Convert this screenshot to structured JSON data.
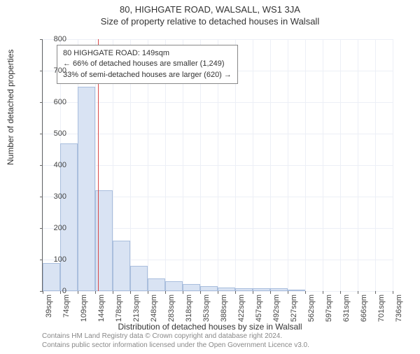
{
  "title_main": "80, HIGHGATE ROAD, WALSALL, WS1 3JA",
  "title_sub": "Size of property relative to detached houses in Walsall",
  "ylabel": "Number of detached properties",
  "xlabel": "Distribution of detached houses by size in Walsall",
  "data_note1": "Contains HM Land Registry data © Crown copyright and database right 2024.",
  "data_note2": "Contains public sector information licensed under the Open Government Licence v3.0.",
  "annotation": {
    "line1": "80 HIGHGATE ROAD: 149sqm",
    "line2": "← 66% of detached houses are smaller (1,249)",
    "line3": "33% of semi-detached houses are larger (620) →"
  },
  "chart": {
    "type": "histogram",
    "background_color": "#ffffff",
    "grid_color": "#eceff6",
    "bar_fill": "#d9e3f3",
    "bar_border": "#a9bedd",
    "marker_color": "#d94a4a",
    "marker_x_value": 149,
    "ylim": [
      0,
      800
    ],
    "ytick_step": 100,
    "yticks": [
      0,
      100,
      200,
      300,
      400,
      500,
      600,
      700,
      800
    ],
    "x_bin_start": 39,
    "x_bin_width": 35,
    "xticks": [
      "39sqm",
      "74sqm",
      "109sqm",
      "144sqm",
      "178sqm",
      "213sqm",
      "248sqm",
      "283sqm",
      "318sqm",
      "353sqm",
      "388sqm",
      "422sqm",
      "457sqm",
      "492sqm",
      "527sqm",
      "562sqm",
      "597sqm",
      "631sqm",
      "666sqm",
      "701sqm",
      "736sqm"
    ],
    "values": [
      90,
      470,
      650,
      320,
      160,
      80,
      40,
      32,
      22,
      15,
      12,
      10,
      9,
      8,
      3,
      0,
      0,
      0,
      0,
      0
    ],
    "title_fontsize": 13,
    "label_fontsize": 12,
    "tick_fontsize": 11
  }
}
